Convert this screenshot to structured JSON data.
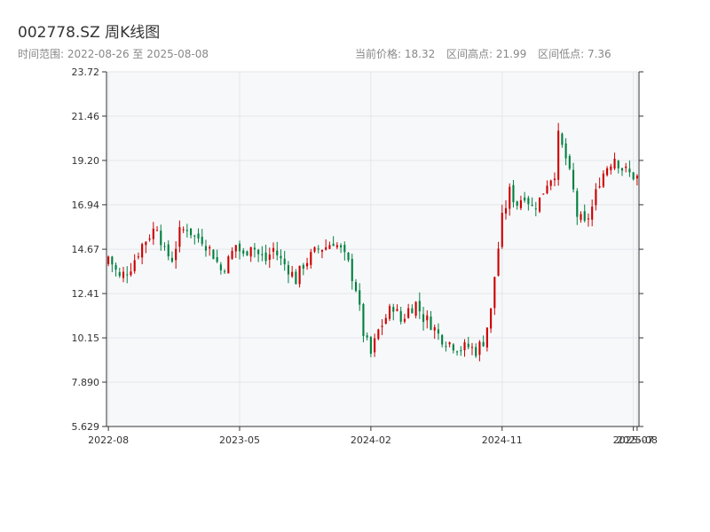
{
  "header": {
    "title": "002778.SZ 周K线图",
    "range_label": "时间范围: 2022-08-26 至 2025-08-08",
    "stats": {
      "current": "当前价格: 18.32",
      "high": "区间高点: 21.99",
      "low": "区间低点: 7.36"
    }
  },
  "colors": {
    "up": "#cc0000",
    "down": "#008040",
    "plot_bg": "#f7f8fa",
    "grid": "#e3e6ea",
    "axis": "#333333"
  },
  "chart_data": {
    "type": "candlestick",
    "title": "",
    "xlabel": "",
    "ylabel": "",
    "ylim": [
      5.629,
      23.72
    ],
    "y_ticks": [
      "5.629",
      "7.890",
      "10.15",
      "12.41",
      "14.67",
      "16.94",
      "19.20",
      "21.46",
      "23.72"
    ],
    "x_ticks": [
      {
        "label": "2022-08",
        "week": 0
      },
      {
        "label": "2023-05",
        "week": 35
      },
      {
        "label": "2024-02",
        "week": 70
      },
      {
        "label": "2024-11",
        "week": 105
      },
      {
        "label": "2025-07",
        "week": 140
      },
      {
        "label": "2025-08",
        "week": 141
      }
    ],
    "start_date": "2022-08-26",
    "end_date": "2025-08-08",
    "interval": "weekly",
    "series": [
      {
        "name": "",
        "close_path": [
          [
            0,
            14.3
          ],
          [
            3,
            13.2
          ],
          [
            6,
            13.8
          ],
          [
            9,
            14.9
          ],
          [
            11,
            15.4
          ],
          [
            13,
            15.9
          ],
          [
            15,
            14.5
          ],
          [
            17,
            14.2
          ],
          [
            19,
            15.5
          ],
          [
            21,
            15.8
          ],
          [
            23,
            15.3
          ],
          [
            25,
            15.2
          ],
          [
            28,
            14.4
          ],
          [
            30,
            13.6
          ],
          [
            32,
            14.1
          ],
          [
            34,
            14.9
          ],
          [
            36,
            14.3
          ],
          [
            38,
            15.0
          ],
          [
            40,
            14.4
          ],
          [
            42,
            14.1
          ],
          [
            44,
            14.7
          ],
          [
            46,
            14.1
          ],
          [
            48,
            13.7
          ],
          [
            50,
            13.1
          ],
          [
            52,
            13.9
          ],
          [
            54,
            14.3
          ],
          [
            56,
            14.7
          ],
          [
            58,
            14.8
          ],
          [
            60,
            15.1
          ],
          [
            62,
            14.6
          ],
          [
            64,
            13.9
          ],
          [
            66,
            12.7
          ],
          [
            68,
            10.4
          ],
          [
            70,
            9.3
          ],
          [
            72,
            10.5
          ],
          [
            74,
            11.2
          ],
          [
            76,
            11.8
          ],
          [
            78,
            11.0
          ],
          [
            80,
            11.6
          ],
          [
            82,
            11.9
          ],
          [
            84,
            11.2
          ],
          [
            86,
            10.9
          ],
          [
            88,
            10.3
          ],
          [
            90,
            10.0
          ],
          [
            92,
            9.8
          ],
          [
            94,
            9.6
          ],
          [
            96,
            9.7
          ],
          [
            98,
            9.5
          ],
          [
            100,
            10.0
          ],
          [
            102,
            11.5
          ],
          [
            103,
            13.3
          ],
          [
            105,
            16.2
          ],
          [
            107,
            17.6
          ],
          [
            109,
            17.0
          ],
          [
            111,
            17.5
          ],
          [
            113,
            16.8
          ],
          [
            115,
            17.2
          ],
          [
            117,
            18.1
          ],
          [
            119,
            18.6
          ],
          [
            120,
            20.4
          ],
          [
            122,
            19.3
          ],
          [
            124,
            17.6
          ],
          [
            125,
            16.4
          ],
          [
            127,
            15.9
          ],
          [
            129,
            16.8
          ],
          [
            131,
            18.2
          ],
          [
            133,
            18.9
          ],
          [
            135,
            19.4
          ],
          [
            137,
            18.8
          ],
          [
            139,
            18.5
          ],
          [
            141,
            18.32
          ]
        ]
      }
    ]
  }
}
